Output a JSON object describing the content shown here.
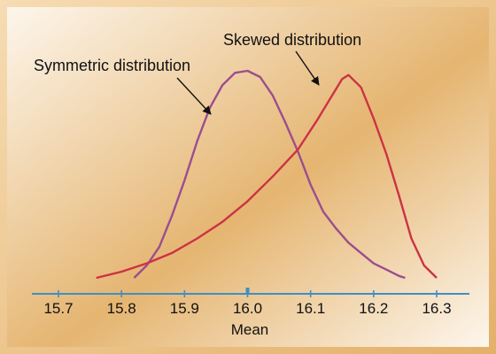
{
  "chart_data": {
    "type": "line",
    "title": "",
    "xlabel": "Mean",
    "ylabel": "",
    "xlim": [
      15.7,
      16.3
    ],
    "x_ticks": [
      "15.7",
      "15.8",
      "15.9",
      "16.0",
      "16.1",
      "16.2",
      "16.3"
    ],
    "grid": false,
    "series": [
      {
        "name": "Symmetric distribution",
        "color": "#9b4e8d",
        "x": [
          15.82,
          15.84,
          15.86,
          15.88,
          15.9,
          15.92,
          15.94,
          15.96,
          15.98,
          16.0,
          16.02,
          16.04,
          16.06,
          16.08,
          16.1,
          16.12,
          16.14,
          16.16,
          16.18,
          16.2,
          16.22,
          16.24,
          16.25
        ],
        "y": [
          0.0,
          0.06,
          0.15,
          0.3,
          0.47,
          0.66,
          0.82,
          0.93,
          0.99,
          1.0,
          0.97,
          0.88,
          0.75,
          0.61,
          0.45,
          0.32,
          0.24,
          0.17,
          0.12,
          0.07,
          0.04,
          0.01,
          0.0
        ]
      },
      {
        "name": "Skewed distribution",
        "color": "#cc3344",
        "x": [
          15.76,
          15.8,
          15.84,
          15.88,
          15.92,
          15.96,
          16.0,
          16.04,
          16.08,
          16.11,
          16.13,
          16.15,
          16.16,
          16.18,
          16.2,
          16.22,
          16.24,
          16.26,
          16.28,
          16.3
        ],
        "y": [
          0.0,
          0.03,
          0.07,
          0.12,
          0.19,
          0.27,
          0.37,
          0.49,
          0.62,
          0.76,
          0.86,
          0.96,
          0.98,
          0.92,
          0.77,
          0.6,
          0.4,
          0.19,
          0.06,
          0.0
        ]
      }
    ],
    "annotations": [
      {
        "text": "Symmetric distribution",
        "target_series": 0
      },
      {
        "text": "Skewed distribution",
        "target_series": 1
      }
    ]
  },
  "theme": {
    "background_light": "#fdf6ec",
    "background_dark": "#e5b571",
    "frame_light": "#f6dcb3",
    "frame_dark": "#e4b069",
    "axis_color": "#3e8fc4",
    "text_color": "#111111"
  }
}
